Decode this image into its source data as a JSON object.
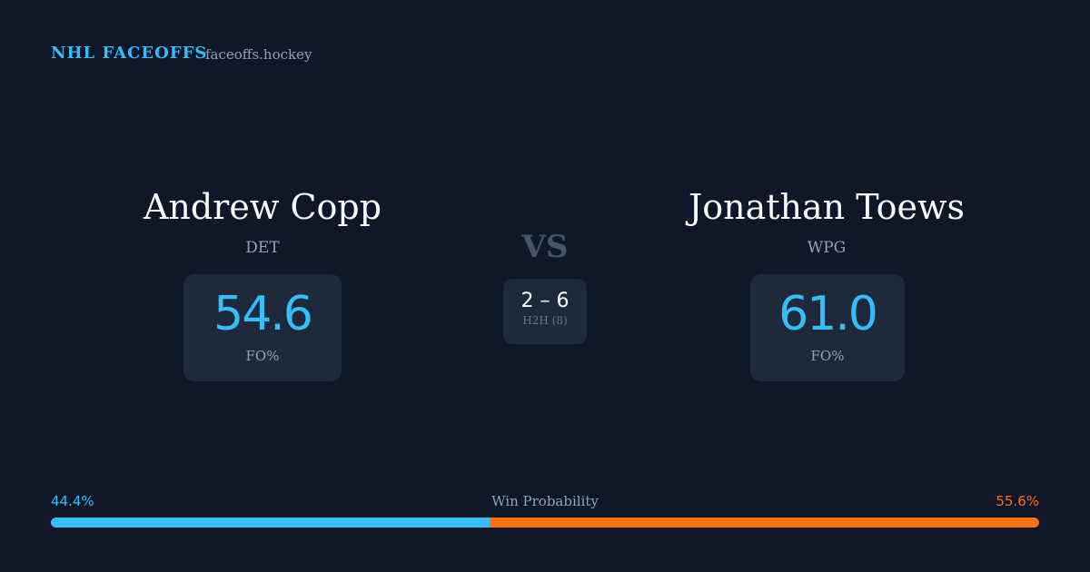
{
  "header": {
    "brand": "NHL FACEOFFS",
    "site": "faceoffs.hockey"
  },
  "players": [
    {
      "name": "Andrew Copp",
      "team": "DET",
      "fo_pct": "54.6",
      "fo_label": "FO%"
    },
    {
      "name": "Jonathan Toews",
      "team": "WPG",
      "fo_pct": "61.0",
      "fo_label": "FO%"
    }
  ],
  "versus": "VS",
  "h2h": {
    "score": "2 – 6",
    "label": "H2H (8)"
  },
  "win_probability": {
    "title": "Win Probability",
    "left": {
      "value": 44.4,
      "label": "44.4%",
      "color": "#38bdf8"
    },
    "right": {
      "value": 55.6,
      "label": "55.6%",
      "color": "#f97316"
    }
  }
}
